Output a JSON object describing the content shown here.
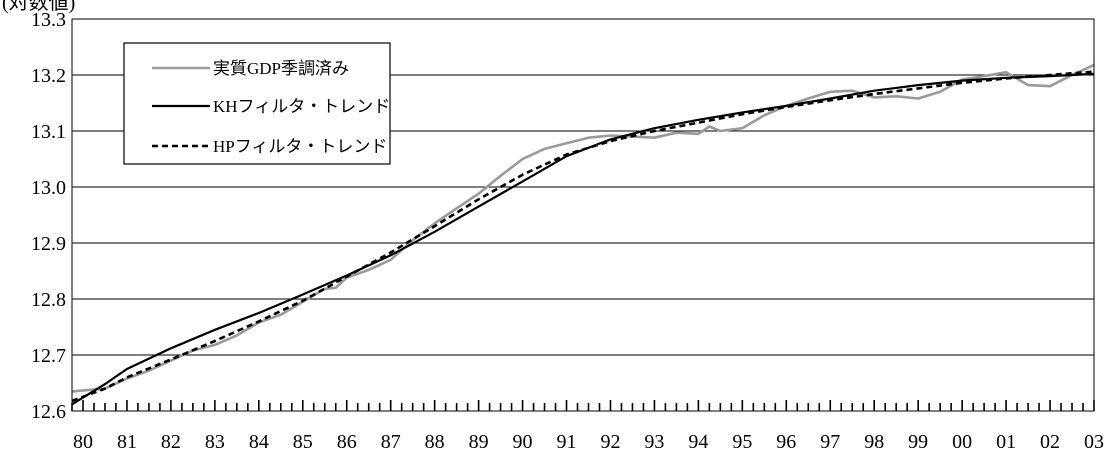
{
  "chart_data": {
    "type": "line",
    "unit_label": "(対数値)",
    "ylim": [
      12.6,
      13.3
    ],
    "y_ticks": [
      "12.6",
      "12.7",
      "12.8",
      "12.9",
      "13.0",
      "13.1",
      "13.2",
      "13.3"
    ],
    "y_tick_values": [
      12.6,
      12.7,
      12.8,
      12.9,
      13.0,
      13.1,
      13.2,
      13.3
    ],
    "x_labels": [
      "80",
      "81",
      "82",
      "83",
      "84",
      "85",
      "86",
      "87",
      "88",
      "89",
      "90",
      "91",
      "92",
      "93",
      "94",
      "95",
      "96",
      "97",
      "98",
      "99",
      "00",
      "01",
      "02",
      "03"
    ],
    "x_range": [
      1979.75,
      2003.0
    ],
    "grid": "horizontal",
    "legend": {
      "placement": "top-left",
      "entries": [
        "実質GDP季調済み",
        "KHフィルタ・トレンド",
        "HPフィルタ・トレンド"
      ]
    },
    "series": [
      {
        "name": "実質GDP季調済み",
        "color": "#9a9a9a",
        "style": "solid",
        "points": [
          [
            1979.75,
            12.635
          ],
          [
            1980.5,
            12.64
          ],
          [
            1981.0,
            12.658
          ],
          [
            1981.5,
            12.672
          ],
          [
            1982.0,
            12.69
          ],
          [
            1982.5,
            12.708
          ],
          [
            1983.0,
            12.718
          ],
          [
            1983.5,
            12.735
          ],
          [
            1984.0,
            12.758
          ],
          [
            1984.5,
            12.772
          ],
          [
            1985.0,
            12.795
          ],
          [
            1985.5,
            12.818
          ],
          [
            1985.75,
            12.82
          ],
          [
            1986.0,
            12.838
          ],
          [
            1986.5,
            12.852
          ],
          [
            1987.0,
            12.87
          ],
          [
            1987.5,
            12.905
          ],
          [
            1988.0,
            12.935
          ],
          [
            1988.5,
            12.962
          ],
          [
            1989.0,
            12.988
          ],
          [
            1989.5,
            13.02
          ],
          [
            1990.0,
            13.05
          ],
          [
            1990.5,
            13.068
          ],
          [
            1991.0,
            13.078
          ],
          [
            1991.5,
            13.088
          ],
          [
            1992.0,
            13.092
          ],
          [
            1992.5,
            13.09
          ],
          [
            1993.0,
            13.088
          ],
          [
            1993.5,
            13.097
          ],
          [
            1994.0,
            13.095
          ],
          [
            1994.25,
            13.108
          ],
          [
            1994.5,
            13.1
          ],
          [
            1995.0,
            13.105
          ],
          [
            1995.5,
            13.128
          ],
          [
            1996.0,
            13.145
          ],
          [
            1996.5,
            13.158
          ],
          [
            1997.0,
            13.17
          ],
          [
            1997.5,
            13.172
          ],
          [
            1998.0,
            13.16
          ],
          [
            1998.5,
            13.162
          ],
          [
            1999.0,
            13.158
          ],
          [
            1999.5,
            13.17
          ],
          [
            2000.0,
            13.192
          ],
          [
            2000.5,
            13.198
          ],
          [
            2001.0,
            13.205
          ],
          [
            2001.5,
            13.182
          ],
          [
            2002.0,
            13.18
          ],
          [
            2002.5,
            13.2
          ],
          [
            2003.0,
            13.218
          ]
        ]
      },
      {
        "name": "KHフィルタ・トレンド",
        "color": "#000000",
        "style": "solid",
        "points": [
          [
            1979.75,
            12.612
          ],
          [
            1980.5,
            12.648
          ],
          [
            1981.0,
            12.675
          ],
          [
            1982.0,
            12.712
          ],
          [
            1983.0,
            12.745
          ],
          [
            1984.0,
            12.775
          ],
          [
            1985.0,
            12.808
          ],
          [
            1986.0,
            12.842
          ],
          [
            1987.0,
            12.878
          ],
          [
            1988.0,
            12.92
          ],
          [
            1989.0,
            12.965
          ],
          [
            1990.0,
            13.01
          ],
          [
            1991.0,
            13.055
          ],
          [
            1992.0,
            13.085
          ],
          [
            1993.0,
            13.105
          ],
          [
            1994.0,
            13.12
          ],
          [
            1995.0,
            13.133
          ],
          [
            1996.0,
            13.145
          ],
          [
            1997.0,
            13.158
          ],
          [
            1998.0,
            13.172
          ],
          [
            1999.0,
            13.182
          ],
          [
            2000.0,
            13.19
          ],
          [
            2001.0,
            13.195
          ],
          [
            2002.0,
            13.198
          ],
          [
            2003.0,
            13.202
          ]
        ]
      },
      {
        "name": "HPフィルタ・トレンド",
        "color": "#000000",
        "style": "dashed",
        "points": [
          [
            1979.75,
            12.618
          ],
          [
            1980.5,
            12.64
          ],
          [
            1981.0,
            12.66
          ],
          [
            1982.0,
            12.692
          ],
          [
            1983.0,
            12.725
          ],
          [
            1984.0,
            12.76
          ],
          [
            1985.0,
            12.797
          ],
          [
            1986.0,
            12.84
          ],
          [
            1987.0,
            12.883
          ],
          [
            1988.0,
            12.93
          ],
          [
            1989.0,
            12.978
          ],
          [
            1990.0,
            13.022
          ],
          [
            1991.0,
            13.058
          ],
          [
            1992.0,
            13.082
          ],
          [
            1993.0,
            13.1
          ],
          [
            1994.0,
            13.115
          ],
          [
            1995.0,
            13.13
          ],
          [
            1996.0,
            13.143
          ],
          [
            1997.0,
            13.155
          ],
          [
            1998.0,
            13.166
          ],
          [
            1999.0,
            13.176
          ],
          [
            2000.0,
            13.186
          ],
          [
            2001.0,
            13.194
          ],
          [
            2002.0,
            13.2
          ],
          [
            2003.0,
            13.206
          ]
        ]
      }
    ]
  }
}
